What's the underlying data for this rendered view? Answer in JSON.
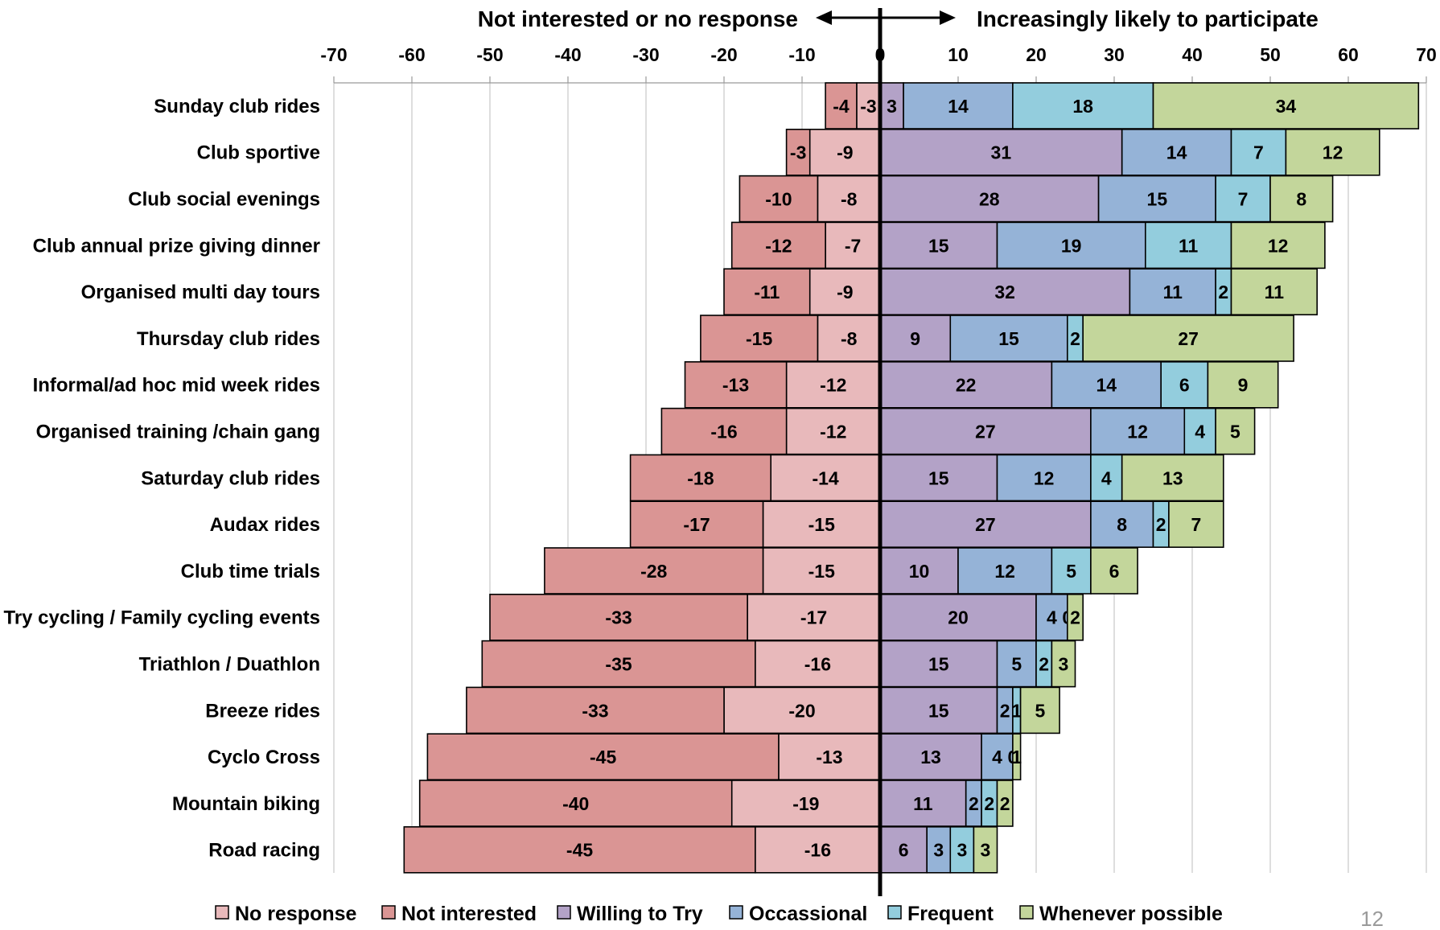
{
  "chart_data": {
    "type": "bar",
    "orientation": "horizontal",
    "stacking": "diverging",
    "header_left": "Not interested or no response",
    "header_right": "Increasingly likely to participate",
    "xlim": [
      -70,
      70
    ],
    "xticks": [
      "-70",
      "-60",
      "-50",
      "-40",
      "-30",
      "-20",
      "-10",
      "0",
      "10",
      "20",
      "30",
      "40",
      "50",
      "60",
      "70"
    ],
    "grid": "vertical",
    "legend_position": "bottom",
    "page_number": "12",
    "categories": [
      "Sunday club rides",
      "Club sportive",
      "Club social evenings",
      "Club annual prize giving dinner",
      "Organised multi day tours",
      "Thursday club rides",
      "Informal/ad hoc mid week rides",
      "Organised training /chain gang",
      "Saturday club rides",
      "Audax rides",
      "Club time trials",
      "Try cycling / Family cycling events",
      "Triathlon / Duathlon",
      "Breeze rides",
      "Cyclo Cross",
      "Mountain biking",
      "Road racing"
    ],
    "series": [
      {
        "name": "No response",
        "color": "#e8b9bb",
        "side": "negative",
        "values": [
          -3,
          -9,
          -8,
          -7,
          -9,
          -8,
          -12,
          -12,
          -14,
          -15,
          -15,
          -17,
          -16,
          -20,
          -13,
          -19,
          -16
        ]
      },
      {
        "name": "Not interested",
        "color": "#da9594",
        "side": "negative",
        "values": [
          -4,
          -3,
          -10,
          -12,
          -11,
          -15,
          -13,
          -16,
          -18,
          -17,
          -28,
          -33,
          -35,
          -33,
          -45,
          -40,
          -45
        ]
      },
      {
        "name": "Willing to Try",
        "color": "#b3a2c7",
        "side": "positive",
        "values": [
          3,
          31,
          28,
          15,
          32,
          9,
          22,
          27,
          15,
          27,
          10,
          20,
          15,
          15,
          13,
          11,
          6
        ]
      },
      {
        "name": "Occassional",
        "color": "#95b3d7",
        "side": "positive",
        "values": [
          14,
          14,
          15,
          19,
          11,
          15,
          14,
          12,
          12,
          8,
          12,
          4,
          5,
          2,
          4,
          2,
          3
        ]
      },
      {
        "name": "Frequent",
        "color": "#93cddd",
        "side": "positive",
        "values": [
          18,
          7,
          7,
          11,
          2,
          2,
          6,
          4,
          4,
          2,
          5,
          0,
          2,
          1,
          0,
          2,
          3
        ]
      },
      {
        "name": "Whenever possible",
        "color": "#c3d69b",
        "side": "positive",
        "values": [
          34,
          12,
          8,
          12,
          11,
          27,
          9,
          5,
          13,
          7,
          6,
          2,
          3,
          5,
          1,
          2,
          3
        ]
      }
    ]
  }
}
